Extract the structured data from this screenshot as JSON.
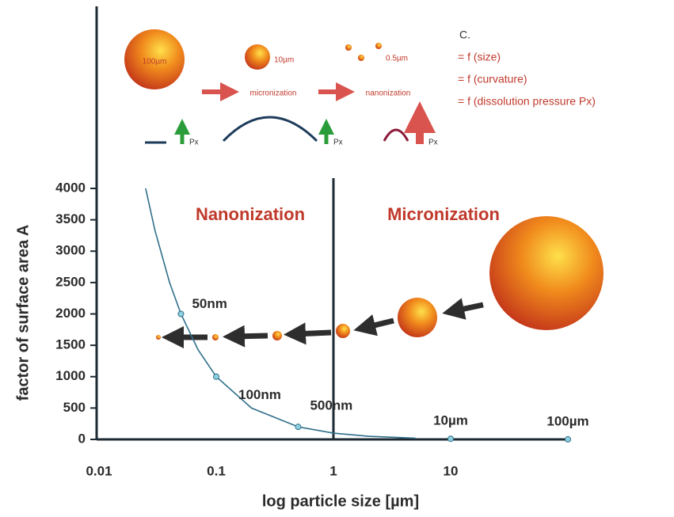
{
  "chart_data": {
    "type": "line",
    "y_label": "factor of surface area A",
    "x_label": "log particle size [µm]",
    "log_x": true,
    "xlim": [
      0.01,
      100
    ],
    "xticks": [
      0.01,
      0.1,
      1,
      10
    ],
    "ylim": [
      0,
      4000
    ],
    "yticks": [
      0,
      500,
      1000,
      1500,
      2000,
      2500,
      3000,
      3500,
      4000
    ],
    "divider_x": 1,
    "region_labels": [
      "Nanonization",
      "Micronization"
    ],
    "curve": {
      "color": "#2f6f8a",
      "x": [
        0.025,
        0.03,
        0.04,
        0.05,
        0.07,
        0.1,
        0.2,
        0.5,
        1,
        2,
        5
      ],
      "values": [
        4000,
        3333,
        2500,
        2000,
        1429,
        1000,
        500,
        200,
        100,
        50,
        20
      ]
    },
    "points": {
      "labels": [
        "50nm",
        "100nm",
        "500nm",
        "10µm",
        "100µm"
      ],
      "x": [
        0.05,
        0.1,
        0.5,
        10,
        100
      ],
      "values": [
        2000,
        1000,
        200,
        10,
        1
      ]
    },
    "diagram": {
      "sizes": [
        "100µm",
        "10µm",
        "0.5µm"
      ],
      "steps": [
        "micronization",
        "nanonization"
      ],
      "pressure": [
        "Px",
        "Px",
        "Px"
      ],
      "notes": [
        "C.",
        "= f (size)",
        "= f (curvature)",
        "= f (dissolution pressure Px)"
      ]
    }
  }
}
